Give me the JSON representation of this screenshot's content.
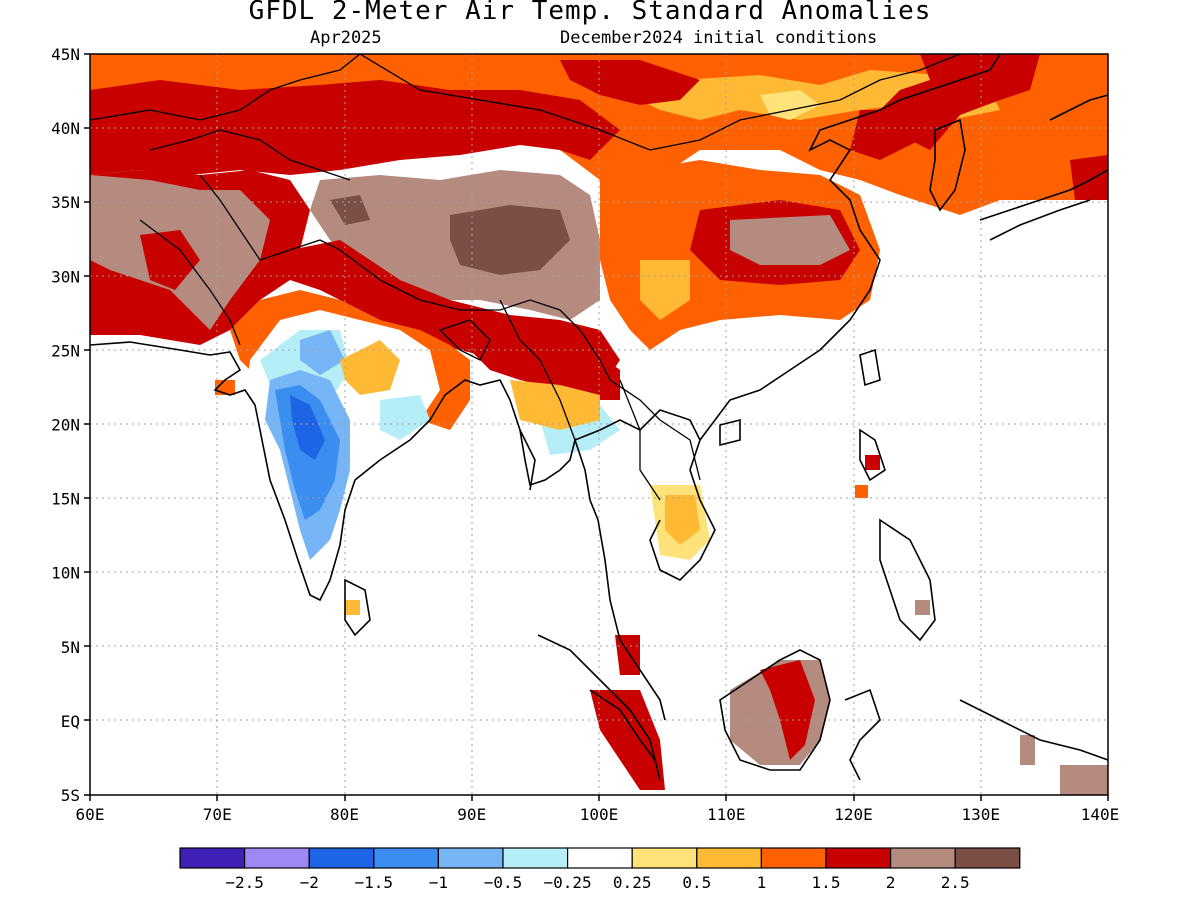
{
  "title": "GFDL 2-Meter Air Temp. Standard Anomalies",
  "valid_month": "Apr2025",
  "initial_conditions": "December2024 initial conditions",
  "lat_labels": [
    "45N",
    "40N",
    "35N",
    "30N",
    "25N",
    "20N",
    "15N",
    "10N",
    "5N",
    "EQ",
    "5S"
  ],
  "lon_labels": [
    "60E",
    "70E",
    "80E",
    "90E",
    "100E",
    "110E",
    "120E",
    "130E",
    "140E"
  ],
  "legend": {
    "colors": [
      "#3f1fb5",
      "#9f87f5",
      "#1d64e6",
      "#3b8ef0",
      "#77b6f6",
      "#b6eef8",
      "#ffffff",
      "#ffe27a",
      "#ffb934",
      "#ff6000",
      "#c80000",
      "#b58b80",
      "#7b4f45"
    ],
    "labels": [
      "−2.5",
      "−2",
      "−1.5",
      "−1",
      "−0.5",
      "−0.25",
      "0.25",
      "0.5",
      "1",
      "1.5",
      "2",
      "2.5"
    ]
  },
  "colors": {
    "frame": "#000000",
    "grid": "#a0a0a0",
    "coast": "#000000"
  }
}
